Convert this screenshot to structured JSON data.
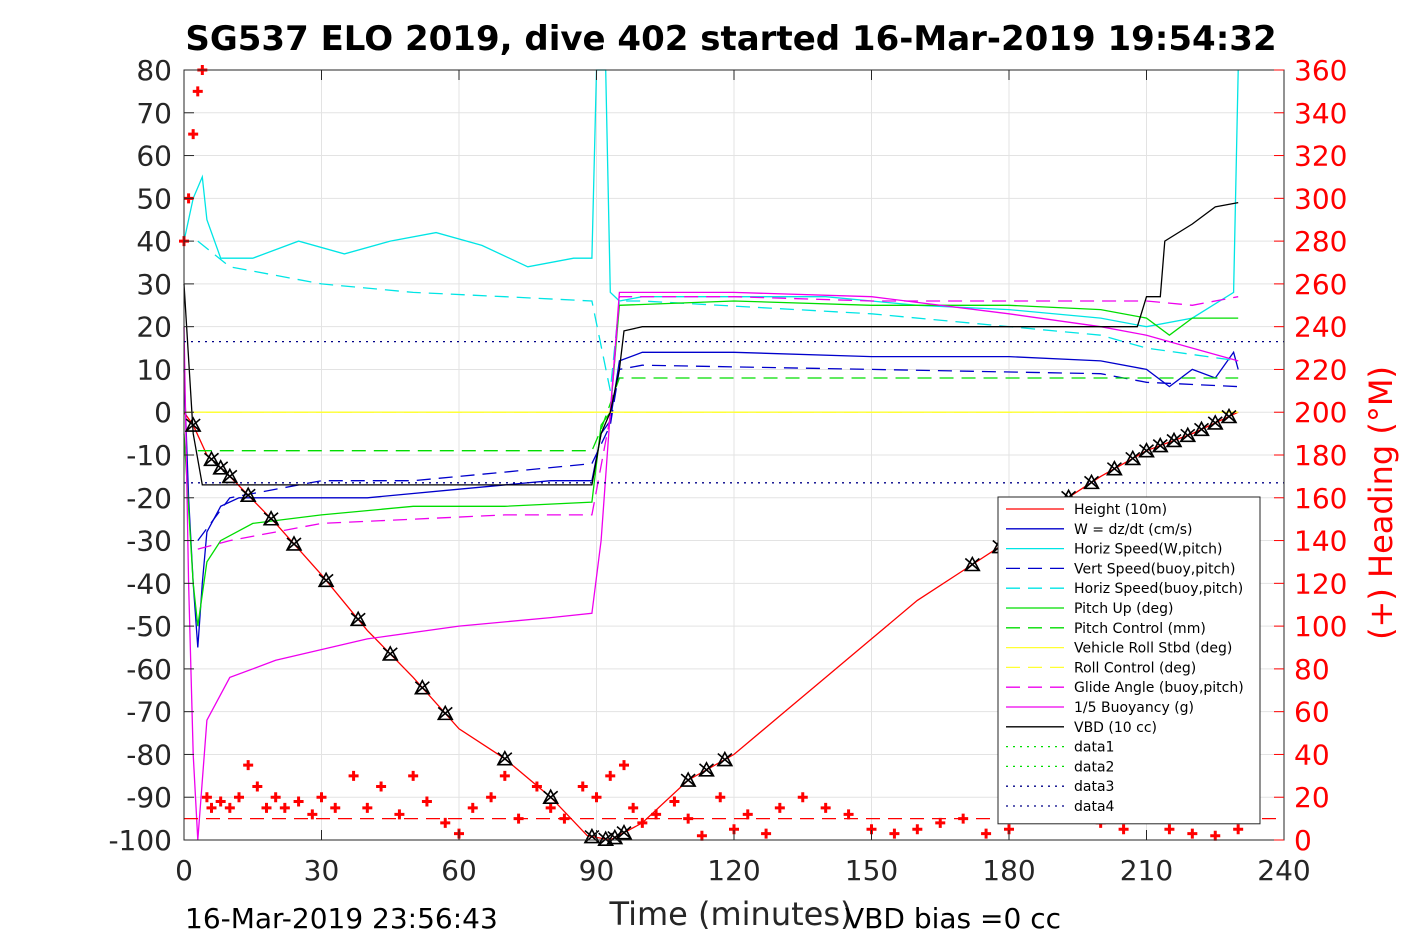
{
  "chart_data": {
    "type": "line",
    "title": "SG537 ELO 2019, dive 402 started 16-Mar-2019 19:54:32",
    "xlabel": "Time (minutes)",
    "ylabel_right": "(+) Heading (°M)",
    "footer_left": "16-Mar-2019 23:56:43",
    "footer_right": "VBD bias =0 cc",
    "xlim": [
      0,
      240
    ],
    "ylim": [
      -100,
      80
    ],
    "y2lim": [
      0,
      360
    ],
    "x_ticks": [
      0,
      30,
      60,
      90,
      120,
      150,
      180,
      210,
      240
    ],
    "y_ticks": [
      -100,
      -90,
      -80,
      -70,
      -60,
      -50,
      -40,
      -30,
      -20,
      -10,
      0,
      10,
      20,
      30,
      40,
      50,
      60,
      70,
      80
    ],
    "y2_ticks": [
      0,
      20,
      40,
      60,
      80,
      100,
      120,
      140,
      160,
      180,
      200,
      220,
      240,
      260,
      280,
      300,
      320,
      340,
      360
    ],
    "grid": true,
    "legend_position": "right",
    "colors": {
      "height": "#ff0000",
      "w": "#0000cc",
      "horiz_speed_w": "#00e5e5",
      "vert_speed_buoy": "#0000cc",
      "horiz_speed_buoy": "#00e5e5",
      "pitch_up": "#00dd00",
      "pitch_control": "#00dd00",
      "roll": "#ffff33",
      "roll_control": "#ffff33",
      "glide_angle": "#ee00ee",
      "buoyancy": "#ee00ee",
      "vbd": "#000000",
      "data1": "#00dd00",
      "data2": "#00dd00",
      "data3": "#000088",
      "data4": "#000088",
      "heading": "#ff0000"
    },
    "series": [
      {
        "name": "Height (10m)",
        "style": "solid",
        "x": [
          0,
          2,
          5,
          10,
          20,
          30,
          40,
          50,
          60,
          70,
          80,
          88,
          93,
          100,
          110,
          120,
          130,
          140,
          150,
          160,
          170,
          180,
          190,
          200,
          210,
          220,
          230
        ],
        "values": [
          0,
          -3,
          -10,
          -15,
          -26,
          -38,
          -51,
          -62,
          -74,
          -81,
          -90,
          -99,
          -100,
          -96,
          -86,
          -80,
          -71,
          -62,
          -53,
          -44,
          -37,
          -30,
          -22,
          -15,
          -9,
          -5,
          0
        ]
      },
      {
        "name": "W = dz/dt (cm/s)",
        "style": "solid",
        "x": [
          0,
          1,
          2,
          3,
          4,
          5,
          8,
          12,
          20,
          40,
          60,
          80,
          89,
          91,
          93,
          95,
          100,
          120,
          150,
          180,
          200,
          210,
          215,
          220,
          225,
          229,
          230
        ],
        "values": [
          10,
          -20,
          -40,
          -55,
          -40,
          -28,
          -22,
          -20,
          -20,
          -20,
          -18,
          -16,
          -16,
          -5,
          -2,
          12,
          14,
          14,
          13,
          13,
          12,
          10,
          6,
          10,
          8,
          14,
          10
        ]
      },
      {
        "name": "Horiz Speed(W,pitch)",
        "style": "solid",
        "x": [
          0,
          2,
          4,
          5,
          8,
          15,
          25,
          35,
          45,
          55,
          65,
          75,
          85,
          89,
          90,
          91,
          92,
          93,
          95,
          100,
          120,
          140,
          160,
          180,
          200,
          210,
          220,
          229,
          230
        ],
        "values": [
          40,
          50,
          55,
          45,
          36,
          36,
          40,
          37,
          40,
          42,
          39,
          34,
          36,
          36,
          80,
          80,
          80,
          28,
          26,
          27,
          27,
          27,
          25,
          24,
          22,
          20,
          22,
          28,
          80
        ]
      },
      {
        "name": "Vert Speed(buoy,pitch)",
        "style": "dash",
        "x": [
          3,
          10,
          30,
          50,
          70,
          89,
          93,
          95,
          100,
          150,
          200,
          210,
          230
        ],
        "values": [
          -30,
          -20,
          -16,
          -16,
          -14,
          -12,
          -3,
          10,
          11,
          10,
          9,
          7,
          6
        ]
      },
      {
        "name": "Horiz Speed(buoy,pitch)",
        "style": "dash",
        "x": [
          3,
          10,
          30,
          50,
          70,
          89,
          93,
          95,
          100,
          150,
          200,
          210,
          230
        ],
        "values": [
          40,
          34,
          30,
          28,
          27,
          26,
          5,
          26,
          26,
          23,
          18,
          15,
          12
        ]
      },
      {
        "name": "Pitch Up (deg)",
        "style": "solid",
        "x": [
          0,
          2,
          3,
          5,
          8,
          15,
          30,
          50,
          70,
          89,
          91,
          93,
          95,
          120,
          150,
          180,
          200,
          210,
          215,
          220,
          230
        ],
        "values": [
          -5,
          -40,
          -50,
          -35,
          -30,
          -26,
          -24,
          -22,
          -22,
          -21,
          -3,
          0,
          25,
          26,
          25,
          25,
          24,
          22,
          18,
          22,
          22
        ]
      },
      {
        "name": "Pitch Control (mm)",
        "style": "dash",
        "x": [
          3,
          10,
          30,
          60,
          89,
          91,
          95,
          120,
          150,
          200,
          230
        ],
        "values": [
          -9,
          -9,
          -9,
          -9,
          -9,
          -4,
          8,
          8,
          8,
          8,
          8
        ]
      },
      {
        "name": "Vehicle Roll Stbd (deg)",
        "style": "solid",
        "x": [
          0,
          5,
          10,
          30,
          60,
          89,
          95,
          120,
          150,
          180,
          210,
          230
        ],
        "values": [
          0,
          0,
          0,
          0,
          0,
          0,
          0,
          0,
          0,
          0,
          0,
          0
        ]
      },
      {
        "name": "Roll Control (deg)",
        "style": "dash",
        "x": [
          0,
          30,
          60,
          89,
          95,
          120,
          150,
          180,
          210,
          230
        ],
        "values": [
          0,
          0,
          0,
          0,
          0,
          0,
          0,
          0,
          0,
          0
        ]
      },
      {
        "name": "Glide Angle (buoy,pitch)",
        "style": "dash",
        "x": [
          3,
          10,
          30,
          50,
          70,
          89,
          93,
          95,
          120,
          150,
          180,
          200,
          210,
          220,
          230
        ],
        "values": [
          -32,
          -30,
          -26,
          -25,
          -24,
          -24,
          -1,
          27,
          27,
          26,
          26,
          26,
          26,
          25,
          27
        ]
      },
      {
        "name": "1/5 Buoyancy (g)",
        "style": "solid",
        "x": [
          0,
          1,
          2,
          3,
          5,
          10,
          20,
          40,
          60,
          80,
          89,
          91,
          93,
          95,
          120,
          150,
          180,
          200,
          210,
          220,
          230
        ],
        "values": [
          20,
          -40,
          -80,
          -100,
          -72,
          -62,
          -58,
          -53,
          -50,
          -48,
          -47,
          -30,
          0,
          28,
          28,
          27,
          23,
          20,
          18,
          15,
          12
        ]
      },
      {
        "name": "VBD (10 cc)",
        "style": "solid",
        "x": [
          0,
          2,
          4,
          30,
          60,
          89,
          91,
          93,
          95,
          96,
          100,
          150,
          205,
          208,
          210,
          213,
          214,
          220,
          225,
          230
        ],
        "values": [
          30,
          -5,
          -17,
          -17,
          -17,
          -17,
          -5,
          0,
          10,
          19,
          20,
          20,
          20,
          20,
          27,
          27,
          40,
          44,
          48,
          49
        ]
      },
      {
        "name": "data1",
        "style": "dot",
        "x": [],
        "values": []
      },
      {
        "name": "data2",
        "style": "dot",
        "x": [],
        "values": []
      },
      {
        "name": "data3",
        "style": "dot",
        "x": [
          0,
          240
        ],
        "values": [
          16.5,
          16.5
        ]
      },
      {
        "name": "data4",
        "style": "dot",
        "x": [
          0,
          240
        ],
        "values": [
          -16.5,
          -16.5
        ]
      }
    ],
    "heading_series": {
      "x": [
        0,
        1,
        2,
        3,
        4,
        5,
        6,
        8,
        10,
        12,
        14,
        16,
        18,
        20,
        22,
        25,
        28,
        30,
        33,
        37,
        40,
        43,
        47,
        50,
        53,
        57,
        60,
        63,
        67,
        70,
        73,
        77,
        80,
        83,
        87,
        90,
        93,
        96,
        98,
        100,
        103,
        107,
        110,
        113,
        117,
        120,
        123,
        127,
        130,
        135,
        140,
        145,
        150,
        155,
        160,
        165,
        170,
        175,
        180,
        185,
        190,
        195,
        200,
        205,
        210,
        215,
        220,
        225,
        230
      ],
      "values": [
        280,
        300,
        330,
        350,
        360,
        20,
        15,
        18,
        15,
        20,
        35,
        25,
        15,
        20,
        15,
        18,
        12,
        20,
        15,
        30,
        15,
        25,
        12,
        30,
        18,
        8,
        3,
        15,
        20,
        30,
        10,
        25,
        15,
        10,
        25,
        20,
        30,
        35,
        15,
        8,
        12,
        18,
        10,
        2,
        20,
        5,
        12,
        3,
        15,
        20,
        15,
        12,
        5,
        3,
        5,
        8,
        10,
        3,
        5,
        10,
        15,
        20,
        8,
        5,
        10,
        5,
        3,
        2,
        5
      ]
    },
    "heading_dash_level": 10,
    "markers_x": [
      2,
      6,
      8,
      10,
      14,
      19,
      24,
      31,
      38,
      45,
      52,
      57,
      70,
      80,
      89,
      92,
      94,
      96,
      110,
      114,
      118,
      172,
      178,
      187,
      193,
      198,
      203,
      207,
      210,
      213,
      216,
      219,
      222,
      225,
      228
    ]
  }
}
